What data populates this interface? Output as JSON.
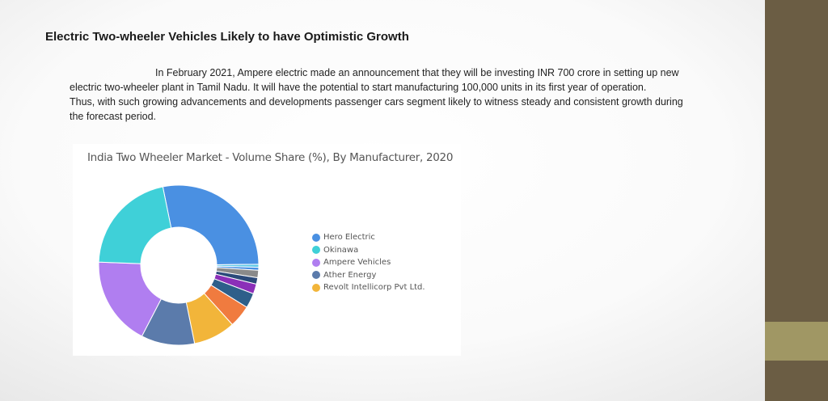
{
  "slide": {
    "title": "Electric Two-wheeler Vehicles Likely to have Optimistic Growth",
    "paragraph1": "In February 2021, Ampere electric made an announcement that they will be investing INR 700 crore in setting up new electric two-wheeler plant in Tamil Nadu. It will have the potential to start manufacturing 100,000 units in its first year of operation.",
    "paragraph2": "Thus, with such growing advancements and developments passenger cars segment likely to witness steady and consistent growth during the forecast period."
  },
  "theme": {
    "sidebar_color": "#6b5d44",
    "sidebar_accent_color": "#a09764"
  },
  "chart_data": {
    "type": "pie",
    "donut": true,
    "title": "India Two Wheeler Market - Volume Share (%), By Manufacturer, 2020",
    "legend_position": "right",
    "slices": [
      {
        "value": 28.0,
        "color": "#4a90e2"
      },
      {
        "value": 0.6,
        "color": "#5ec8e8"
      },
      {
        "value": 0.6,
        "color": "#4a90e2"
      },
      {
        "value": 1.5,
        "color": "#8a8a8a"
      },
      {
        "value": 1.3,
        "color": "#2b4a7a"
      },
      {
        "value": 2.0,
        "color": "#8b2fb8"
      },
      {
        "value": 3.0,
        "color": "#2e5f8a"
      },
      {
        "value": 4.5,
        "color": "#f07b3f"
      },
      {
        "value": 8.5,
        "color": "#f2b53a"
      },
      {
        "value": 10.8,
        "color": "#5b7bab"
      },
      {
        "value": 18.0,
        "color": "#b07ef0"
      },
      {
        "value": 21.2,
        "color": "#3fd0d8"
      }
    ],
    "legend": [
      {
        "label": "Hero Electric",
        "color": "#4a90e2"
      },
      {
        "label": "Okinawa",
        "color": "#3fd0d8"
      },
      {
        "label": "Ampere Vehicles",
        "color": "#b07ef0"
      },
      {
        "label": "Ather Energy",
        "color": "#5b7bab"
      },
      {
        "label": "Revolt Intellicorp Pvt Ltd.",
        "color": "#f2b53a"
      }
    ]
  }
}
